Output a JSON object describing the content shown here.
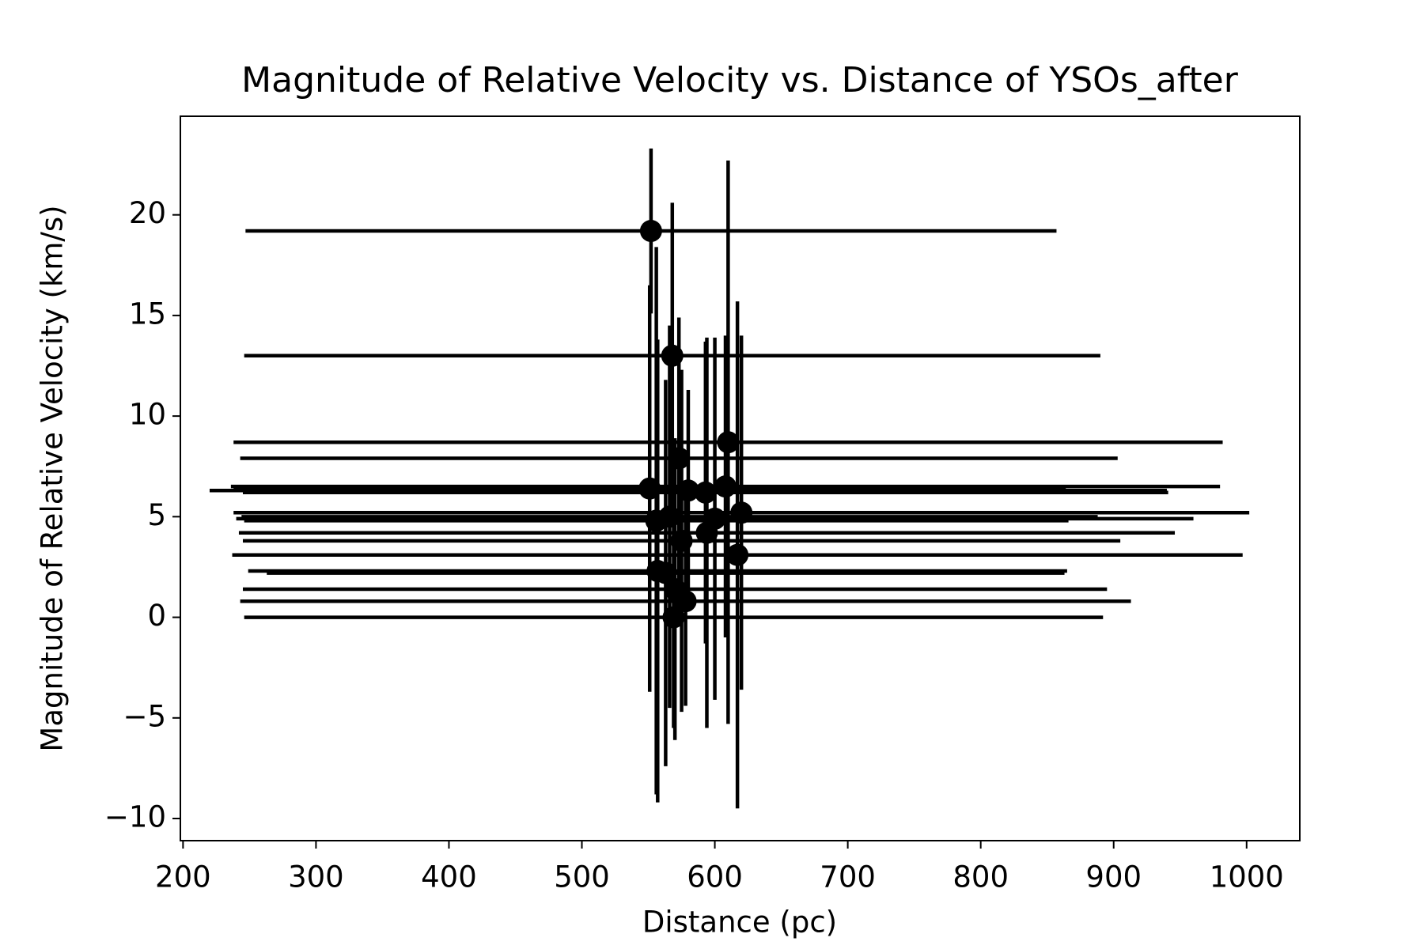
{
  "chart_data": {
    "type": "errorbar",
    "title": "Magnitude of Relative Velocity vs. Distance of YSOs_after",
    "x_label": "Distance (pc)",
    "y_label": "Magnitude of Relative Velocity (km/s)",
    "color": "#000000",
    "x": [
      552,
      568,
      610,
      573,
      551,
      608,
      593,
      580,
      620,
      566,
      556,
      594,
      575,
      617,
      557,
      563,
      570,
      578,
      569,
      600
    ],
    "values": [
      19.2,
      13.0,
      8.7,
      7.9,
      6.4,
      6.5,
      6.2,
      6.3,
      5.2,
      5.0,
      4.8,
      4.2,
      3.8,
      3.1,
      2.3,
      2.2,
      1.4,
      0.8,
      0.0,
      4.9
    ],
    "xerr": [
      305,
      322,
      372,
      330,
      313,
      372,
      348,
      360,
      382,
      322,
      310,
      352,
      330,
      380,
      308,
      300,
      325,
      335,
      323,
      360
    ],
    "yerr": [
      4.1,
      7.6,
      14,
      7.0,
      10.1,
      7.5,
      7.5,
      5.0,
      8.8,
      9.5,
      13.6,
      9.7,
      8.5,
      12.6,
      11.5,
      9.6,
      7.5,
      5.2,
      5.5,
      9.0
    ],
    "xlim": [
      198,
      1040
    ],
    "ylim": [
      -11.1,
      24.9
    ],
    "xticks": [
      200,
      300,
      400,
      500,
      600,
      700,
      800,
      900,
      1000
    ],
    "yticks": [
      {
        "value": -10,
        "label": "−10"
      },
      {
        "value": -5,
        "label": "−5"
      },
      0,
      5,
      10,
      15,
      20
    ]
  }
}
